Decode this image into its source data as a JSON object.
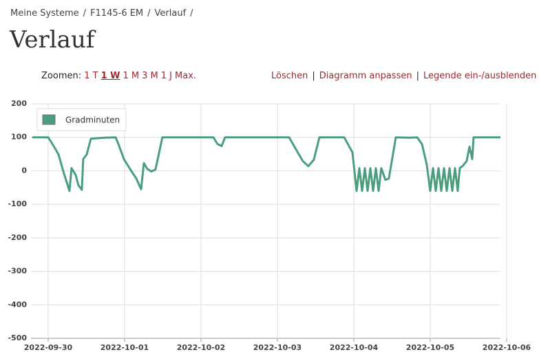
{
  "breadcrumb": {
    "items": [
      "Meine Systeme",
      "F1145-6 EM",
      "Verlauf"
    ],
    "separator": "/"
  },
  "page_title": "Verlauf",
  "zoom": {
    "label": "Zoomen:",
    "options": [
      "1 T",
      "1 W",
      "1 M",
      "3 M",
      "1 J",
      "Max."
    ],
    "active": 1
  },
  "actions": {
    "items": [
      "Löschen",
      "Diagramm anpassen",
      "Legende ein-/ausblenden"
    ],
    "separator": "|"
  },
  "chart_data": {
    "type": "line",
    "x": [
      -0.207,
      0,
      0.072,
      0.135,
      0.198,
      0.279,
      0.306,
      0.36,
      0.396,
      0.441,
      0.459,
      0.505,
      0.559,
      0.739,
      0.883,
      0.919,
      0.991,
      1.081,
      1.153,
      1.216,
      1.252,
      1.297,
      1.351,
      1.405,
      1.495,
      2.162,
      2.216,
      2.27,
      2.315,
      3.153,
      3.243,
      3.333,
      3.405,
      3.477,
      3.55,
      3.874,
      3.982,
      4.036,
      4.072,
      4.108,
      4.144,
      4.18,
      4.216,
      4.252,
      4.288,
      4.324,
      4.36,
      4.414,
      4.459,
      4.55,
      4.73,
      4.829,
      4.892,
      4.955,
      5.0,
      5.036,
      5.072,
      5.108,
      5.144,
      5.18,
      5.216,
      5.252,
      5.288,
      5.324,
      5.36,
      5.387,
      5.423,
      5.477,
      5.514,
      5.55,
      5.568,
      5.919
    ],
    "series": [
      {
        "name": "Gradminuten",
        "color": "#4a9e7e",
        "values": [
          100,
          100,
          74,
          49,
          -2,
          -60,
          8,
          -12,
          -43,
          -57,
          35,
          49,
          96,
          99,
          100,
          80,
          35,
          2,
          -23,
          -55,
          23,
          6,
          -2,
          4,
          100,
          100,
          80,
          74,
          100,
          100,
          64,
          29,
          14,
          33,
          100,
          100,
          55,
          -60,
          8,
          -60,
          8,
          -60,
          8,
          -60,
          8,
          -60,
          8,
          -27,
          -23,
          100,
          99,
          100,
          80,
          18,
          -60,
          8,
          -60,
          8,
          -60,
          8,
          -60,
          8,
          -60,
          8,
          -60,
          8,
          14,
          29,
          72,
          35,
          100,
          100
        ]
      }
    ],
    "xlim": [
      -0.225,
      5.919
    ],
    "xticks": [
      {
        "value": 0,
        "label": "2022-09-30"
      },
      {
        "value": 1,
        "label": "2022-10-01"
      },
      {
        "value": 2,
        "label": "2022-10-02"
      },
      {
        "value": 3,
        "label": "2022-10-03"
      },
      {
        "value": 4,
        "label": "2022-10-04"
      },
      {
        "value": 5,
        "label": "2022-10-05"
      },
      {
        "value": 6,
        "label": "2022-10-06"
      }
    ],
    "ylim": [
      -500,
      200
    ],
    "yticks": [
      -500,
      -400,
      -300,
      -200,
      -100,
      0,
      100,
      200
    ],
    "grid": true,
    "legend": "upper-left"
  }
}
